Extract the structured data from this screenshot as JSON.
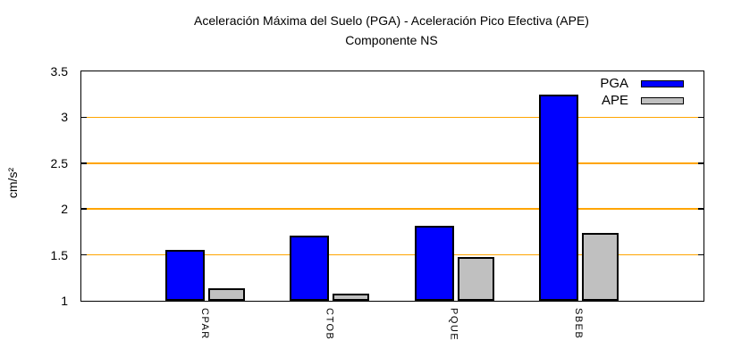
{
  "title": {
    "line1": "Aceleración Máxima del Suelo (PGA) -  Aceleración Pico Efectiva (APE)",
    "line2": "Componente NS"
  },
  "y_axis": {
    "label": "cm/s²",
    "tick_labels": [
      "1",
      "1.5",
      "2",
      "2.5",
      "3",
      "3.5"
    ]
  },
  "legend": {
    "items": [
      {
        "label": "PGA",
        "color": "#0000ff"
      },
      {
        "label": "APE",
        "color": "#c0c0c0"
      }
    ]
  },
  "chart_data": {
    "type": "bar",
    "categories": [
      "CPAR",
      "CTOB",
      "PQUE",
      "SBEB"
    ],
    "series": [
      {
        "name": "PGA",
        "color": "#0000ff",
        "values": [
          1.55,
          1.71,
          1.82,
          3.25
        ]
      },
      {
        "name": "APE",
        "color": "#c0c0c0",
        "values": [
          1.14,
          1.08,
          1.48,
          1.74
        ]
      }
    ],
    "title": "Aceleración Máxima del Suelo (PGA) -  Aceleración Pico Efectiva (APE)",
    "subtitle": "Componente NS",
    "xlabel": "",
    "ylabel": "cm/s²",
    "ylim": [
      1,
      3.5
    ],
    "yticks": [
      1,
      1.5,
      2,
      2.5,
      3,
      3.5
    ],
    "grid": true,
    "grid_color": "#ffa500",
    "bar_border_color": "#000000",
    "plot_border_color": "#000000",
    "background_color": "#ffffff",
    "legend_position": "top-right-inside"
  }
}
